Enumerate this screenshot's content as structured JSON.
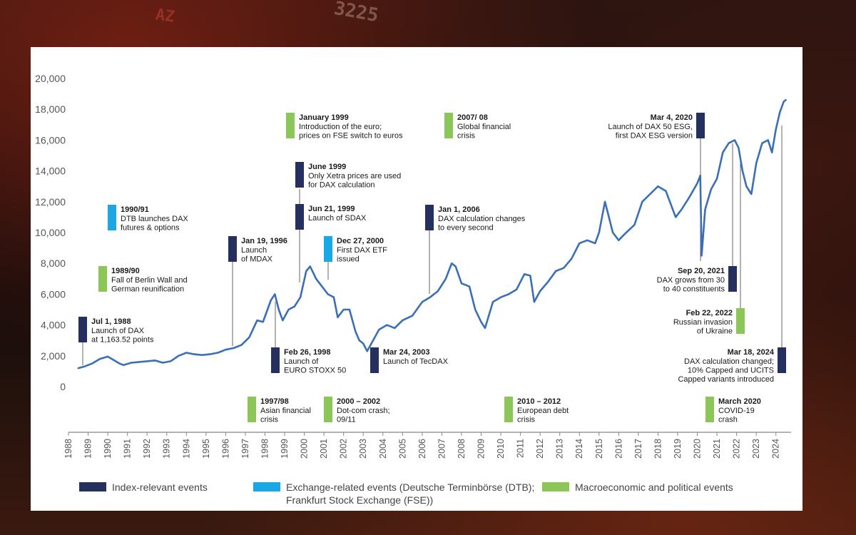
{
  "background": {
    "ticker_top": "3225",
    "ticker_left": "AZ"
  },
  "colors": {
    "line": "#3a6fb5",
    "index_event": "#25305e",
    "exchange_event": "#19a7e6",
    "macro_event": "#8cc558",
    "axis": "#888888",
    "text": "#1a1a1a"
  },
  "chart_data": {
    "type": "line",
    "title": "",
    "xlabel": "",
    "ylabel": "",
    "xlim": [
      1988.0,
      2024.7
    ],
    "ylim": [
      0,
      20000
    ],
    "grid": false,
    "y_ticks": [
      "20,000",
      "18,000",
      "16,000",
      "14,000",
      "12,000",
      "10,000",
      "8,000",
      "6,000",
      "4,000",
      "2,000",
      "0"
    ],
    "y_tick_values": [
      20000,
      18000,
      16000,
      14000,
      12000,
      10000,
      8000,
      6000,
      4000,
      2000,
      0
    ],
    "x_ticks": [
      "1988",
      "1989",
      "1990",
      "1991",
      "1992",
      "1993",
      "1994",
      "1995",
      "1996",
      "1997",
      "1998",
      "1999",
      "2000",
      "2001",
      "2002",
      "2003",
      "2004",
      "2005",
      "2006",
      "2007",
      "2008",
      "2009",
      "2010",
      "2011",
      "2012",
      "2013",
      "2014",
      "2015",
      "2016",
      "2017",
      "2018",
      "2019",
      "2020",
      "2021",
      "2022",
      "2023",
      "2024"
    ],
    "series": [
      {
        "name": "DAX",
        "x": [
          1988.5,
          1988.8,
          1989.2,
          1989.6,
          1990.0,
          1990.4,
          1990.6,
          1990.8,
          1991.2,
          1991.6,
          1992.0,
          1992.4,
          1992.8,
          1993.2,
          1993.6,
          1994.0,
          1994.4,
          1994.8,
          1995.2,
          1995.6,
          1996.0,
          1996.4,
          1996.8,
          1997.2,
          1997.6,
          1997.9,
          1998.3,
          1998.5,
          1998.7,
          1998.9,
          1999.2,
          1999.5,
          1999.8,
          2000.1,
          2000.3,
          2000.6,
          2000.9,
          2001.2,
          2001.5,
          2001.7,
          2002.0,
          2002.3,
          2002.6,
          2002.8,
          2003.0,
          2003.2,
          2003.5,
          2003.8,
          2004.2,
          2004.6,
          2005.0,
          2005.5,
          2006.0,
          2006.4,
          2006.8,
          2007.2,
          2007.5,
          2007.7,
          2008.0,
          2008.4,
          2008.7,
          2009.0,
          2009.2,
          2009.6,
          2010.0,
          2010.4,
          2010.8,
          2011.2,
          2011.5,
          2011.7,
          2012.0,
          2012.4,
          2012.8,
          2013.2,
          2013.6,
          2014.0,
          2014.4,
          2014.8,
          2015.0,
          2015.3,
          2015.7,
          2016.0,
          2016.3,
          2016.8,
          2017.2,
          2017.6,
          2018.0,
          2018.4,
          2018.9,
          2019.2,
          2019.6,
          2020.0,
          2020.15,
          2020.22,
          2020.4,
          2020.7,
          2021.0,
          2021.3,
          2021.6,
          2021.9,
          2022.1,
          2022.3,
          2022.5,
          2022.75,
          2023.0,
          2023.3,
          2023.6,
          2023.8,
          2024.0,
          2024.2,
          2024.4,
          2024.5
        ],
        "values": [
          1200,
          1300,
          1500,
          1800,
          1950,
          1650,
          1500,
          1400,
          1550,
          1600,
          1650,
          1700,
          1550,
          1650,
          2000,
          2200,
          2100,
          2050,
          2100,
          2200,
          2400,
          2500,
          2700,
          3200,
          4300,
          4200,
          5600,
          6000,
          5000,
          4300,
          5000,
          5200,
          5800,
          7500,
          7800,
          7000,
          6500,
          6000,
          5800,
          4500,
          5000,
          5000,
          3600,
          3000,
          2800,
          2300,
          3000,
          3700,
          4000,
          3800,
          4300,
          4600,
          5500,
          5800,
          6200,
          7000,
          8000,
          7800,
          6700,
          6500,
          5000,
          4200,
          3800,
          5500,
          5800,
          6000,
          6300,
          7300,
          7200,
          5500,
          6200,
          6800,
          7500,
          7700,
          8300,
          9300,
          9500,
          9300,
          10000,
          12000,
          10000,
          9500,
          9900,
          10500,
          12000,
          12500,
          13000,
          12700,
          11000,
          11500,
          12300,
          13200,
          13700,
          8500,
          11500,
          12800,
          13500,
          15200,
          15800,
          16000,
          15500,
          14000,
          13000,
          12500,
          14500,
          15800,
          16000,
          15200,
          16700,
          17800,
          18500,
          18600
        ]
      }
    ],
    "annotations": [
      {
        "title": "Jul 1, 1988",
        "lines": [
          "Launch of DAX",
          "at 1,163.52 points"
        ],
        "category": "index",
        "year": 1988.5
      },
      {
        "title": "1989/90",
        "lines": [
          "Fall of Berlin Wall and",
          "German reunification"
        ],
        "category": "macro",
        "year": 1989.9
      },
      {
        "title": "1990/91",
        "lines": [
          "DTB launches DAX",
          "futures & options"
        ],
        "category": "exchange",
        "year": 1990.9
      },
      {
        "title": "Jan 19, 1996",
        "lines": [
          "Launch",
          "of MDAX"
        ],
        "category": "index",
        "year": 1996.05
      },
      {
        "title": "1997/98",
        "lines": [
          "Asian financial",
          "crisis"
        ],
        "category": "macro",
        "year": 1997.9
      },
      {
        "title": "Feb 26, 1998",
        "lines": [
          "Launch of",
          "EURO STOXX 50"
        ],
        "category": "index",
        "year": 1998.15
      },
      {
        "title": "January 1999",
        "lines": [
          "Introduction of the euro;",
          "prices on FSE switch to euros"
        ],
        "category": "macro",
        "year": 1999.0
      },
      {
        "title": "June 1999",
        "lines": [
          "Only Xetra prices are used",
          "for DAX calculation"
        ],
        "category": "index",
        "year": 1999.45
      },
      {
        "title": "Jun 21, 1999",
        "lines": [
          "Launch of SDAX"
        ],
        "category": "index",
        "year": 1999.47
      },
      {
        "title": "Dec 27, 2000",
        "lines": [
          "First DAX ETF",
          "issued"
        ],
        "category": "exchange",
        "year": 2000.99
      },
      {
        "title": "2000 – 2002",
        "lines": [
          "Dot-com crash;",
          "09/11"
        ],
        "category": "macro",
        "year": 2001.5
      },
      {
        "title": "Mar 24, 2003",
        "lines": [
          "Launch of TecDAX"
        ],
        "category": "index",
        "year": 2003.23
      },
      {
        "title": "Jan 1, 2006",
        "lines": [
          "DAX calculation changes",
          "to every second"
        ],
        "category": "index",
        "year": 2006.0
      },
      {
        "title": "2007/ 08",
        "lines": [
          "Global financial",
          "crisis"
        ],
        "category": "macro",
        "year": 2007.8
      },
      {
        "title": "2010 – 2012",
        "lines": [
          "European debt",
          "crisis"
        ],
        "category": "macro",
        "year": 2011.0
      },
      {
        "title": "Mar 4, 2020",
        "lines": [
          "Launch of DAX 50 ESG,",
          "first DAX ESG version"
        ],
        "category": "index",
        "year": 2020.18
      },
      {
        "title": "March 2020",
        "lines": [
          "COVID-19",
          "crash"
        ],
        "category": "macro",
        "year": 2020.2
      },
      {
        "title": "Sep 20, 2021",
        "lines": [
          "DAX grows from 30",
          "to 40 constituents"
        ],
        "category": "index",
        "year": 2021.72
      },
      {
        "title": "Feb 22, 2022",
        "lines": [
          "Russian invasion",
          "of Ukraine"
        ],
        "category": "macro",
        "year": 2022.15
      },
      {
        "title": "Mar 18, 2024",
        "lines": [
          "DAX calculation changed;",
          "10% Capped and UCITS",
          "Capped variants introduced"
        ],
        "category": "index",
        "year": 2024.21
      }
    ],
    "legend": [
      {
        "category": "index",
        "lines": [
          "Index-relevant events"
        ]
      },
      {
        "category": "exchange",
        "lines": [
          "Exchange-related events (Deutsche Terminbörse (DTB);",
          "Frankfurt Stock Exchange (FSE))"
        ]
      },
      {
        "category": "macro",
        "lines": [
          "Macroeconomic and political events"
        ]
      }
    ],
    "legend_position": "bottom"
  }
}
